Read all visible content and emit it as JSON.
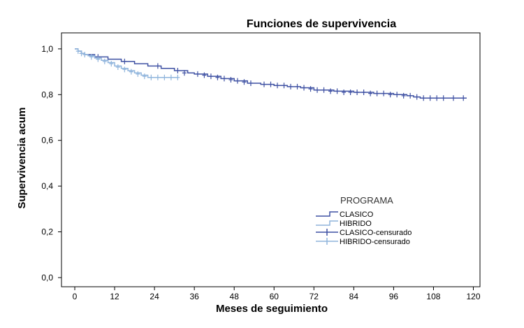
{
  "chart_data": {
    "type": "line",
    "title": "Funciones de supervivencia",
    "xlabel": "Meses de seguimiento",
    "ylabel": "Supervivencia acum",
    "xlim": [
      -4,
      122
    ],
    "ylim": [
      -0.04,
      1.07
    ],
    "xticks": [
      "0",
      "12",
      "24",
      "36",
      "48",
      "60",
      "72",
      "84",
      "96",
      "108",
      "120"
    ],
    "xtick_values": [
      0,
      12,
      24,
      36,
      48,
      60,
      72,
      84,
      96,
      108,
      120
    ],
    "yticks": [
      "0,0",
      "0,2",
      "0,4",
      "0,6",
      "0,8",
      "1,0"
    ],
    "ytick_values": [
      0,
      0.2,
      0.4,
      0.6,
      0.8,
      1.0
    ],
    "grid": false,
    "legend": {
      "title": "PROGRAMA",
      "position": "bottom-right",
      "entries": [
        "CLASICO",
        "HIBRIDO",
        "CLASICO-censurado",
        "HIBRIDO-censurado"
      ]
    },
    "series": [
      {
        "name": "CLASICO",
        "color": "#3f51a3",
        "step_x": [
          0,
          1,
          2,
          3,
          6,
          10,
          14,
          18,
          22,
          26,
          30,
          34,
          36,
          40,
          44,
          48,
          52,
          56,
          60,
          64,
          68,
          72,
          78,
          84,
          90,
          96,
          100,
          102,
          104,
          118
        ],
        "step_y": [
          1.0,
          0.99,
          0.98,
          0.975,
          0.965,
          0.955,
          0.945,
          0.935,
          0.925,
          0.915,
          0.905,
          0.895,
          0.89,
          0.88,
          0.87,
          0.86,
          0.85,
          0.845,
          0.84,
          0.835,
          0.83,
          0.82,
          0.815,
          0.81,
          0.805,
          0.8,
          0.795,
          0.79,
          0.785,
          0.785
        ],
        "censored_x": [
          7,
          15,
          25,
          31,
          33,
          37,
          39,
          41,
          43,
          45,
          47,
          49,
          51,
          53,
          57,
          59,
          61,
          63,
          65,
          67,
          69,
          71,
          73,
          75,
          77,
          79,
          81,
          83,
          85,
          87,
          89,
          91,
          93,
          95,
          97,
          99,
          101,
          103,
          105,
          107,
          109,
          111,
          114,
          117
        ],
        "censored_y": [
          0.965,
          0.945,
          0.925,
          0.905,
          0.895,
          0.89,
          0.885,
          0.88,
          0.875,
          0.87,
          0.865,
          0.86,
          0.855,
          0.85,
          0.845,
          0.845,
          0.84,
          0.84,
          0.835,
          0.835,
          0.83,
          0.825,
          0.82,
          0.82,
          0.815,
          0.815,
          0.81,
          0.81,
          0.81,
          0.81,
          0.805,
          0.805,
          0.805,
          0.8,
          0.8,
          0.795,
          0.795,
          0.79,
          0.785,
          0.785,
          0.785,
          0.785,
          0.785,
          0.785
        ]
      },
      {
        "name": "HIBRIDO",
        "color": "#8fb4dc",
        "step_x": [
          0,
          1,
          2,
          3,
          4,
          6,
          8,
          10,
          12,
          14,
          16,
          18,
          20,
          22,
          31
        ],
        "step_y": [
          1.0,
          0.99,
          0.98,
          0.975,
          0.97,
          0.96,
          0.95,
          0.94,
          0.925,
          0.915,
          0.905,
          0.895,
          0.885,
          0.875,
          0.875
        ],
        "censored_x": [
          1,
          2,
          3,
          5,
          7,
          9,
          11,
          13,
          15,
          17,
          19,
          21,
          23,
          25,
          27,
          29,
          31
        ],
        "censored_y": [
          0.99,
          0.98,
          0.975,
          0.965,
          0.955,
          0.945,
          0.935,
          0.92,
          0.91,
          0.9,
          0.89,
          0.88,
          0.875,
          0.875,
          0.875,
          0.875,
          0.875
        ]
      }
    ]
  }
}
